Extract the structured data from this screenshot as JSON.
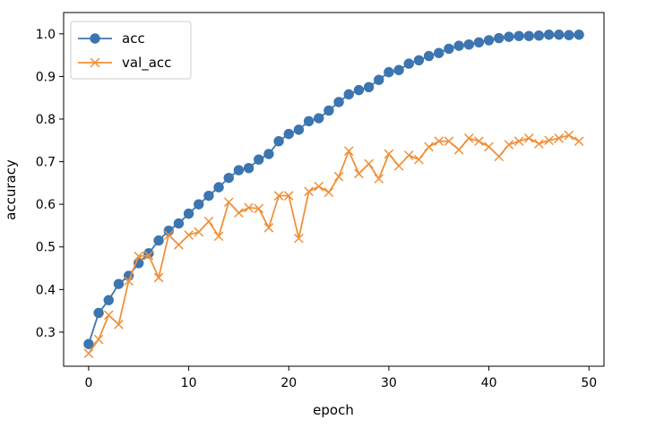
{
  "chart_data": {
    "type": "line",
    "title": "",
    "xlabel": "epoch",
    "ylabel": "accuracy",
    "xlim": [
      -2.5,
      51.5
    ],
    "ylim": [
      0.22,
      1.05
    ],
    "xticks": [
      0,
      10,
      20,
      30,
      40,
      50
    ],
    "yticks": [
      0.3,
      0.4,
      0.5,
      0.6,
      0.7,
      0.8,
      0.9,
      1.0
    ],
    "xtick_labels": [
      "0",
      "10",
      "20",
      "30",
      "40",
      "50"
    ],
    "ytick_labels": [
      "0.3",
      "0.4",
      "0.5",
      "0.6",
      "0.7",
      "0.8",
      "0.9",
      "1.0"
    ],
    "grid": false,
    "legend_position": "top-left",
    "x": [
      0,
      1,
      2,
      3,
      4,
      5,
      6,
      7,
      8,
      9,
      10,
      11,
      12,
      13,
      14,
      15,
      16,
      17,
      18,
      19,
      20,
      21,
      22,
      23,
      24,
      25,
      26,
      27,
      28,
      29,
      30,
      31,
      32,
      33,
      34,
      35,
      36,
      37,
      38,
      39,
      40,
      41,
      42,
      43,
      44,
      45,
      46,
      47,
      48,
      49
    ],
    "series": [
      {
        "name": "acc",
        "color": "#3c75b0",
        "marker": "circle",
        "values": [
          0.272,
          0.345,
          0.375,
          0.413,
          0.432,
          0.462,
          0.485,
          0.515,
          0.538,
          0.555,
          0.578,
          0.6,
          0.62,
          0.64,
          0.662,
          0.68,
          0.685,
          0.705,
          0.718,
          0.748,
          0.765,
          0.775,
          0.795,
          0.802,
          0.82,
          0.84,
          0.858,
          0.868,
          0.875,
          0.892,
          0.91,
          0.915,
          0.93,
          0.938,
          0.948,
          0.955,
          0.965,
          0.972,
          0.975,
          0.98,
          0.985,
          0.99,
          0.993,
          0.995,
          0.995,
          0.996,
          0.998,
          0.998,
          0.997,
          0.998
        ]
      },
      {
        "name": "val_acc",
        "color": "#f0913a",
        "marker": "x",
        "values": [
          0.25,
          0.283,
          0.34,
          0.318,
          0.42,
          0.478,
          0.48,
          0.428,
          0.528,
          0.505,
          0.528,
          0.535,
          0.56,
          0.525,
          0.605,
          0.58,
          0.592,
          0.59,
          0.545,
          0.62,
          0.62,
          0.52,
          0.63,
          0.642,
          0.628,
          0.665,
          0.725,
          0.672,
          0.695,
          0.66,
          0.718,
          0.69,
          0.715,
          0.705,
          0.735,
          0.748,
          0.748,
          0.728,
          0.755,
          0.748,
          0.735,
          0.712,
          0.74,
          0.748,
          0.755,
          0.742,
          0.75,
          0.755,
          0.762,
          0.748
        ]
      }
    ]
  }
}
